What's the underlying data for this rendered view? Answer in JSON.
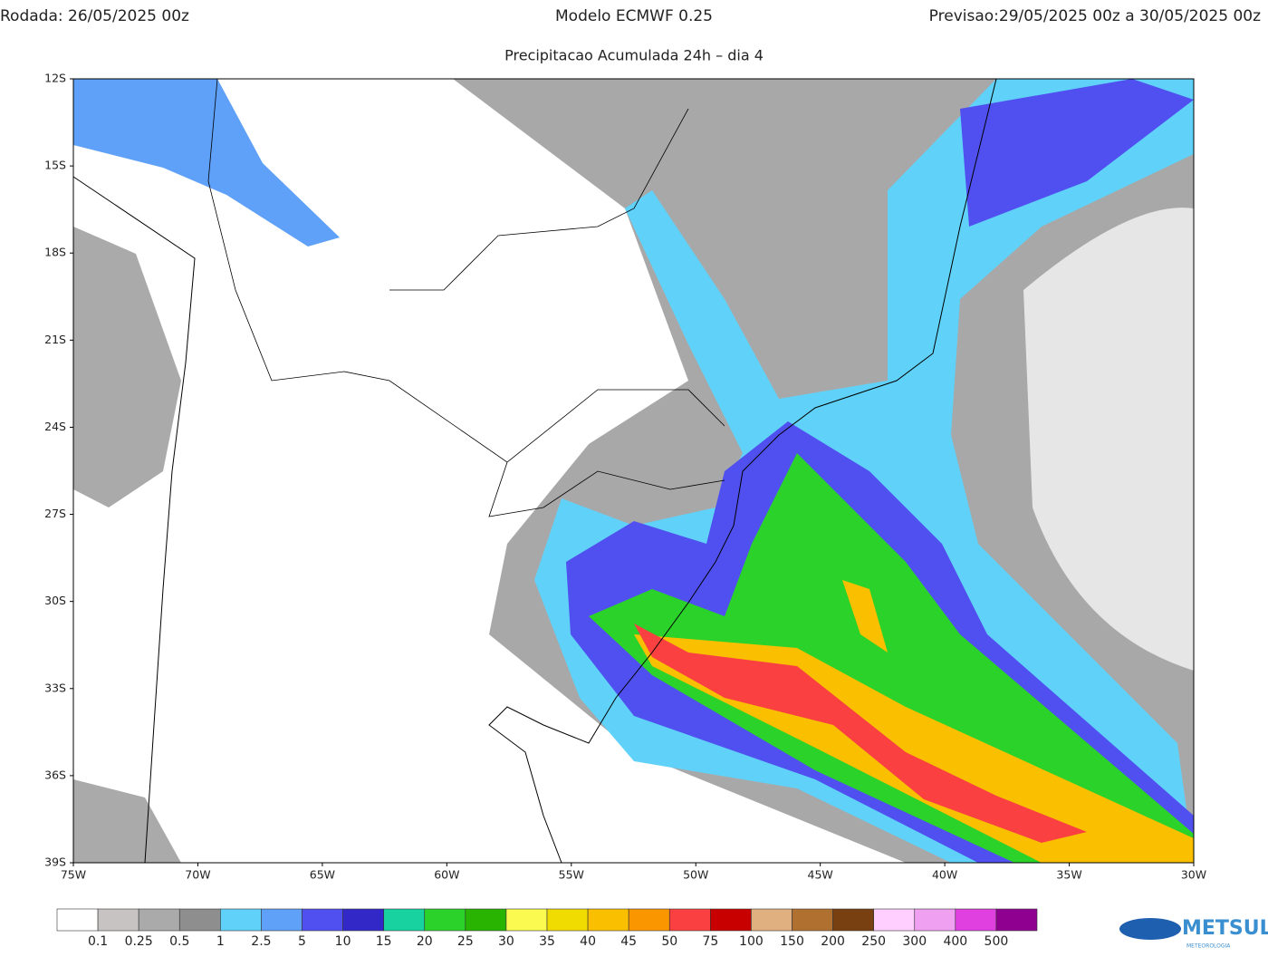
{
  "header": {
    "run": "Rodada: 26/05/2025 00z",
    "model": "Modelo ECMWF 0.25",
    "forecast": "Previsao:29/05/2025 00z a 30/05/2025 00z",
    "subtitle": "Precipitacao Acumulada 24h – dia 4"
  },
  "map": {
    "lat_range": [
      -12,
      -39
    ],
    "lon_range": [
      -75,
      -30
    ],
    "lat_labels": [
      {
        "value": -12,
        "label": "12S"
      },
      {
        "value": -15,
        "label": "15S"
      },
      {
        "value": -18,
        "label": "18S"
      },
      {
        "value": -21,
        "label": "21S"
      },
      {
        "value": -24,
        "label": "24S"
      },
      {
        "value": -27,
        "label": "27S"
      },
      {
        "value": -30,
        "label": "30S"
      },
      {
        "value": -33,
        "label": "33S"
      },
      {
        "value": -36,
        "label": "36S"
      },
      {
        "value": -39,
        "label": "39S"
      }
    ],
    "lon_labels": [
      {
        "value": -75,
        "label": "75W"
      },
      {
        "value": -70,
        "label": "70W"
      },
      {
        "value": -65,
        "label": "65W"
      },
      {
        "value": -60,
        "label": "60W"
      },
      {
        "value": -55,
        "label": "55W"
      },
      {
        "value": -50,
        "label": "50W"
      },
      {
        "value": -45,
        "label": "45W"
      },
      {
        "value": -40,
        "label": "40W"
      },
      {
        "value": -35,
        "label": "35W"
      },
      {
        "value": -30,
        "label": "30W"
      }
    ]
  },
  "colorbar": {
    "colors": [
      "#ffffff",
      "#c8c3c3",
      "#aaaaaa",
      "#8e8e8e",
      "#60d2fa",
      "#5fa0f8",
      "#5050f0",
      "#3228c8",
      "#18d2a0",
      "#2ad22a",
      "#28b400",
      "#fafa50",
      "#f0dc00",
      "#fac000",
      "#fa9600",
      "#fa4040",
      "#c80000",
      "#e0b080",
      "#b07030",
      "#784010",
      "#ffd0ff",
      "#f0a0f0",
      "#e040e0",
      "#900090"
    ],
    "labels": [
      0.1,
      0.25,
      0.5,
      1,
      2.5,
      5,
      10,
      15,
      20,
      25,
      30,
      35,
      40,
      45,
      50,
      75,
      100,
      150,
      200,
      250,
      300,
      400,
      500
    ]
  },
  "logo": {
    "name": "METSUL",
    "subtitle": "METEOROLOGIA"
  }
}
